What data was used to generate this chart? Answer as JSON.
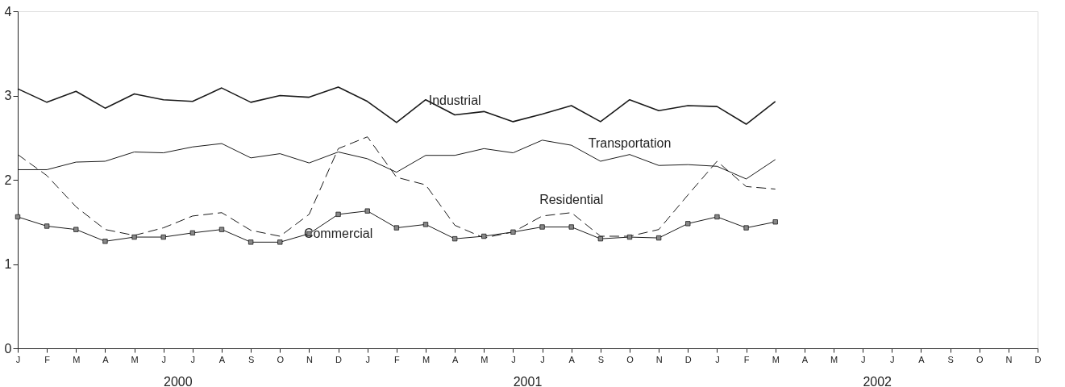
{
  "chart_data": {
    "type": "line",
    "categories": [
      "J",
      "F",
      "M",
      "A",
      "M",
      "J",
      "J",
      "A",
      "S",
      "O",
      "N",
      "D",
      "J",
      "F",
      "M",
      "A",
      "M",
      "J",
      "J",
      "A",
      "S",
      "O",
      "N",
      "D",
      "J",
      "F",
      "M",
      "A",
      "M",
      "J",
      "J",
      "A",
      "S",
      "O",
      "N",
      "D"
    ],
    "series": [
      {
        "name": "Industrial",
        "color": "#1a1a1a",
        "line_style": "solid",
        "values": [
          3.08,
          2.92,
          3.05,
          2.85,
          3.02,
          2.95,
          2.93,
          3.09,
          2.92,
          3.0,
          2.98,
          3.1,
          2.93,
          2.68,
          2.95,
          2.77,
          2.81,
          2.69,
          2.78,
          2.88,
          2.69,
          2.95,
          2.82,
          2.88,
          2.87,
          2.66,
          2.93,
          null,
          null,
          null,
          null,
          null,
          null,
          null,
          null,
          null
        ]
      },
      {
        "name": "Transportation",
        "color": "#1a1a1a",
        "line_style": "solid",
        "values": [
          2.12,
          2.12,
          2.21,
          2.22,
          2.33,
          2.32,
          2.39,
          2.43,
          2.26,
          2.31,
          2.2,
          2.33,
          2.25,
          2.09,
          2.29,
          2.29,
          2.37,
          2.32,
          2.47,
          2.41,
          2.22,
          2.3,
          2.17,
          2.18,
          2.16,
          2.01,
          2.24,
          null,
          null,
          null,
          null,
          null,
          null,
          null,
          null,
          null
        ]
      },
      {
        "name": "Residential",
        "color": "#1a1a1a",
        "line_style": "dashed",
        "values": [
          2.3,
          2.05,
          1.68,
          1.41,
          1.34,
          1.43,
          1.57,
          1.61,
          1.4,
          1.33,
          1.59,
          2.37,
          2.51,
          2.03,
          1.94,
          1.46,
          1.31,
          1.38,
          1.57,
          1.61,
          1.33,
          1.33,
          1.41,
          1.82,
          2.22,
          1.92,
          1.89,
          null,
          null,
          null,
          null,
          null,
          null,
          null,
          null,
          null
        ]
      },
      {
        "name": "Commercial",
        "color": "#1a1a1a",
        "line_style": "solid",
        "marker": "square",
        "values": [
          1.56,
          1.45,
          1.41,
          1.27,
          1.32,
          1.32,
          1.37,
          1.41,
          1.26,
          1.26,
          1.36,
          1.59,
          1.63,
          1.43,
          1.47,
          1.3,
          1.33,
          1.38,
          1.44,
          1.44,
          1.3,
          1.32,
          1.31,
          1.48,
          1.56,
          1.43,
          1.5,
          null,
          null,
          null,
          null,
          null,
          null,
          null,
          null,
          null
        ]
      }
    ],
    "ylim": [
      0,
      4
    ],
    "yticks": [
      0,
      1,
      2,
      3,
      4
    ],
    "annotations": [
      "2000",
      "2001",
      "2002"
    ],
    "grid": false
  }
}
